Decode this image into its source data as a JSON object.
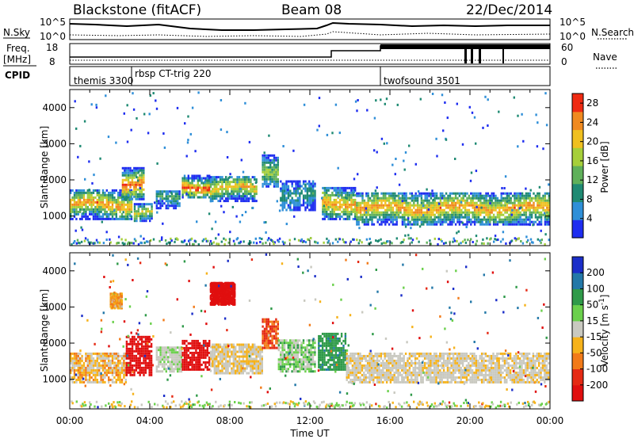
{
  "header": {
    "station": "Blackstone (fitACF)",
    "beam": "Beam 08",
    "date": "22/Dec/2014"
  },
  "colors": {
    "power_scale": [
      "#1e2df0",
      "#2f8fd8",
      "#1f8a73",
      "#5fb05a",
      "#a6cf3a",
      "#f0c020",
      "#f08a20",
      "#ef2a12"
    ],
    "velocity_scale": [
      "#1b2ec9",
      "#2378a8",
      "#2f9a49",
      "#6bd04c",
      "#c9c9c0",
      "#f6b21a",
      "#f27a18",
      "#e52a14",
      "#e00f0f"
    ]
  },
  "top_panels": {
    "sky_label": "N.Sky",
    "sky_ticks": [
      "10^5",
      "10^0"
    ],
    "search_label": "N.Search",
    "search_ticks": [
      "10^5",
      "10^0"
    ],
    "freq_label_1": "Freq.",
    "freq_label_2": "[MHz]",
    "freq_ticks": [
      "18",
      "8"
    ],
    "nave_label": "Nave",
    "nave_ticks": [
      "60",
      "0"
    ],
    "cpid_label": "CPID",
    "cpid_entries": [
      {
        "text": "themis 3300",
        "start": "00:00"
      },
      {
        "text": "rbsp CT-trig 220",
        "start": "02:40"
      },
      {
        "text": "twofsound 3501",
        "start": "15:30"
      }
    ]
  },
  "chart_data": [
    {
      "type": "heatmap",
      "title": "",
      "xlabel": "Time UT",
      "ylabel": "Slant Range [km]",
      "x_ticks": [
        "00:00",
        "04:00",
        "08:00",
        "12:00",
        "16:00",
        "20:00",
        "00:00"
      ],
      "y_ticks": [
        1000,
        2000,
        3000,
        4000
      ],
      "xlim_hours": [
        0,
        24
      ],
      "ylim_km": [
        180,
        4500
      ],
      "colorbar": {
        "label": "Power [dB]",
        "ticks": [
          4,
          8,
          12,
          16,
          20,
          24,
          28
        ],
        "range": [
          0,
          30
        ]
      },
      "bands": [
        {
          "start": 0.0,
          "end": 3.1,
          "center": 1350,
          "width": 800,
          "peak": 24
        },
        {
          "start": 2.6,
          "end": 3.7,
          "center": 1950,
          "width": 900,
          "peak": 27
        },
        {
          "start": 3.2,
          "end": 4.1,
          "center": 1150,
          "width": 500,
          "peak": 20
        },
        {
          "start": 4.3,
          "end": 5.5,
          "center": 1500,
          "width": 500,
          "peak": 12
        },
        {
          "start": 5.6,
          "end": 7.0,
          "center": 1850,
          "width": 600,
          "peak": 28
        },
        {
          "start": 7.0,
          "end": 9.3,
          "center": 1800,
          "width": 700,
          "peak": 22
        },
        {
          "start": 9.6,
          "end": 10.4,
          "center": 2300,
          "width": 900,
          "peak": 16
        },
        {
          "start": 10.5,
          "end": 12.3,
          "center": 1600,
          "width": 800,
          "peak": 10
        },
        {
          "start": 12.6,
          "end": 14.3,
          "center": 1400,
          "width": 900,
          "peak": 24
        },
        {
          "start": 14.3,
          "end": 24.0,
          "center": 1250,
          "width": 900,
          "peak": 24
        }
      ]
    },
    {
      "type": "heatmap",
      "title": "",
      "xlabel": "Time UT",
      "ylabel": "Slant Range [km]",
      "x_ticks": [
        "00:00",
        "04:00",
        "08:00",
        "12:00",
        "16:00",
        "20:00",
        "00:00"
      ],
      "y_ticks": [
        1000,
        2000,
        3000,
        4000
      ],
      "xlim_hours": [
        0,
        24
      ],
      "ylim_km": [
        180,
        4500
      ],
      "colorbar": {
        "label": "Velocity [m s^-1]",
        "ticks": [
          200,
          100,
          50,
          15,
          -15,
          -50,
          -100,
          -200
        ],
        "range": [
          -250,
          250
        ]
      },
      "bands": [
        {
          "start": 0.0,
          "end": 2.8,
          "center": 1350,
          "width": 800,
          "velocity": -20
        },
        {
          "start": 2.8,
          "end": 4.1,
          "center": 1700,
          "width": 1100,
          "velocity": -200
        },
        {
          "start": 4.3,
          "end": 5.6,
          "center": 1600,
          "width": 700,
          "velocity": 5
        },
        {
          "start": 5.6,
          "end": 7.0,
          "center": 1700,
          "width": 800,
          "velocity": -220
        },
        {
          "start": 7.0,
          "end": 9.6,
          "center": 1600,
          "width": 800,
          "velocity": -10
        },
        {
          "start": 9.6,
          "end": 10.4,
          "center": 2300,
          "width": 800,
          "velocity": -80
        },
        {
          "start": 10.4,
          "end": 12.3,
          "center": 1700,
          "width": 900,
          "velocity": 20
        },
        {
          "start": 12.4,
          "end": 13.8,
          "center": 1800,
          "width": 1000,
          "velocity": 60
        },
        {
          "start": 13.8,
          "end": 24.0,
          "center": 1350,
          "width": 800,
          "velocity": -5
        }
      ],
      "patches": [
        {
          "start": 7.0,
          "end": 8.2,
          "center": 3400,
          "width": 600,
          "velocity": -180
        },
        {
          "start": 2.0,
          "end": 2.6,
          "center": 3200,
          "width": 400,
          "velocity": -30
        }
      ]
    }
  ]
}
